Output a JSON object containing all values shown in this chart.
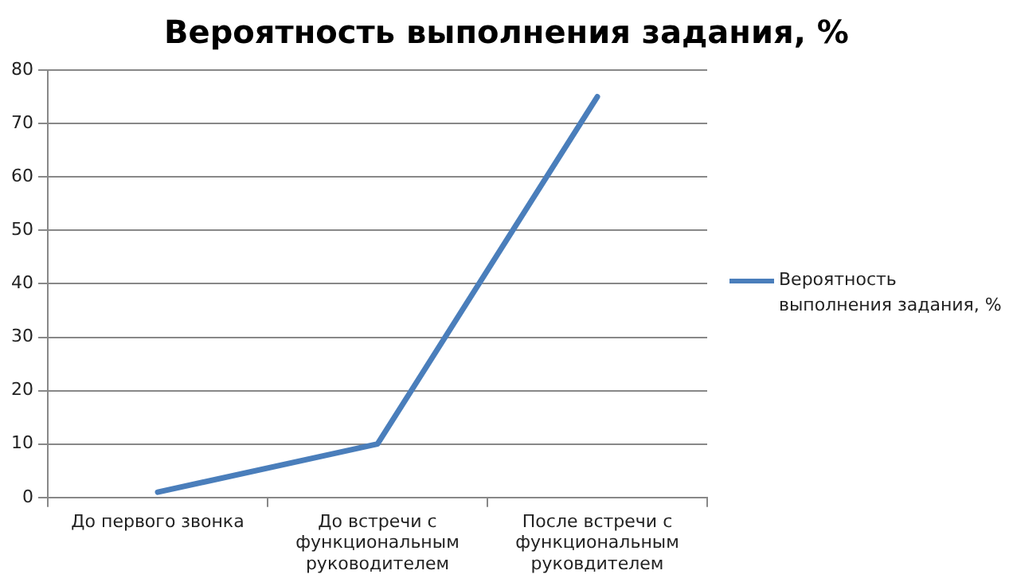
{
  "chart_data": {
    "type": "line",
    "title": "Вероятность выполнения задания, %",
    "categories": [
      "До первого звонка",
      "До встречи с функциональным руководителем",
      "После встречи с функциональным руковдителем"
    ],
    "series": [
      {
        "name": "Вероятность выполнения задания, %",
        "color": "#4a7ebb",
        "values": [
          1,
          10,
          75
        ]
      }
    ],
    "ylim": [
      0,
      80
    ],
    "yticks": [
      0,
      10,
      20,
      30,
      40,
      50,
      60,
      70,
      80
    ],
    "grid": "y",
    "legend": "right",
    "marker": "none"
  }
}
